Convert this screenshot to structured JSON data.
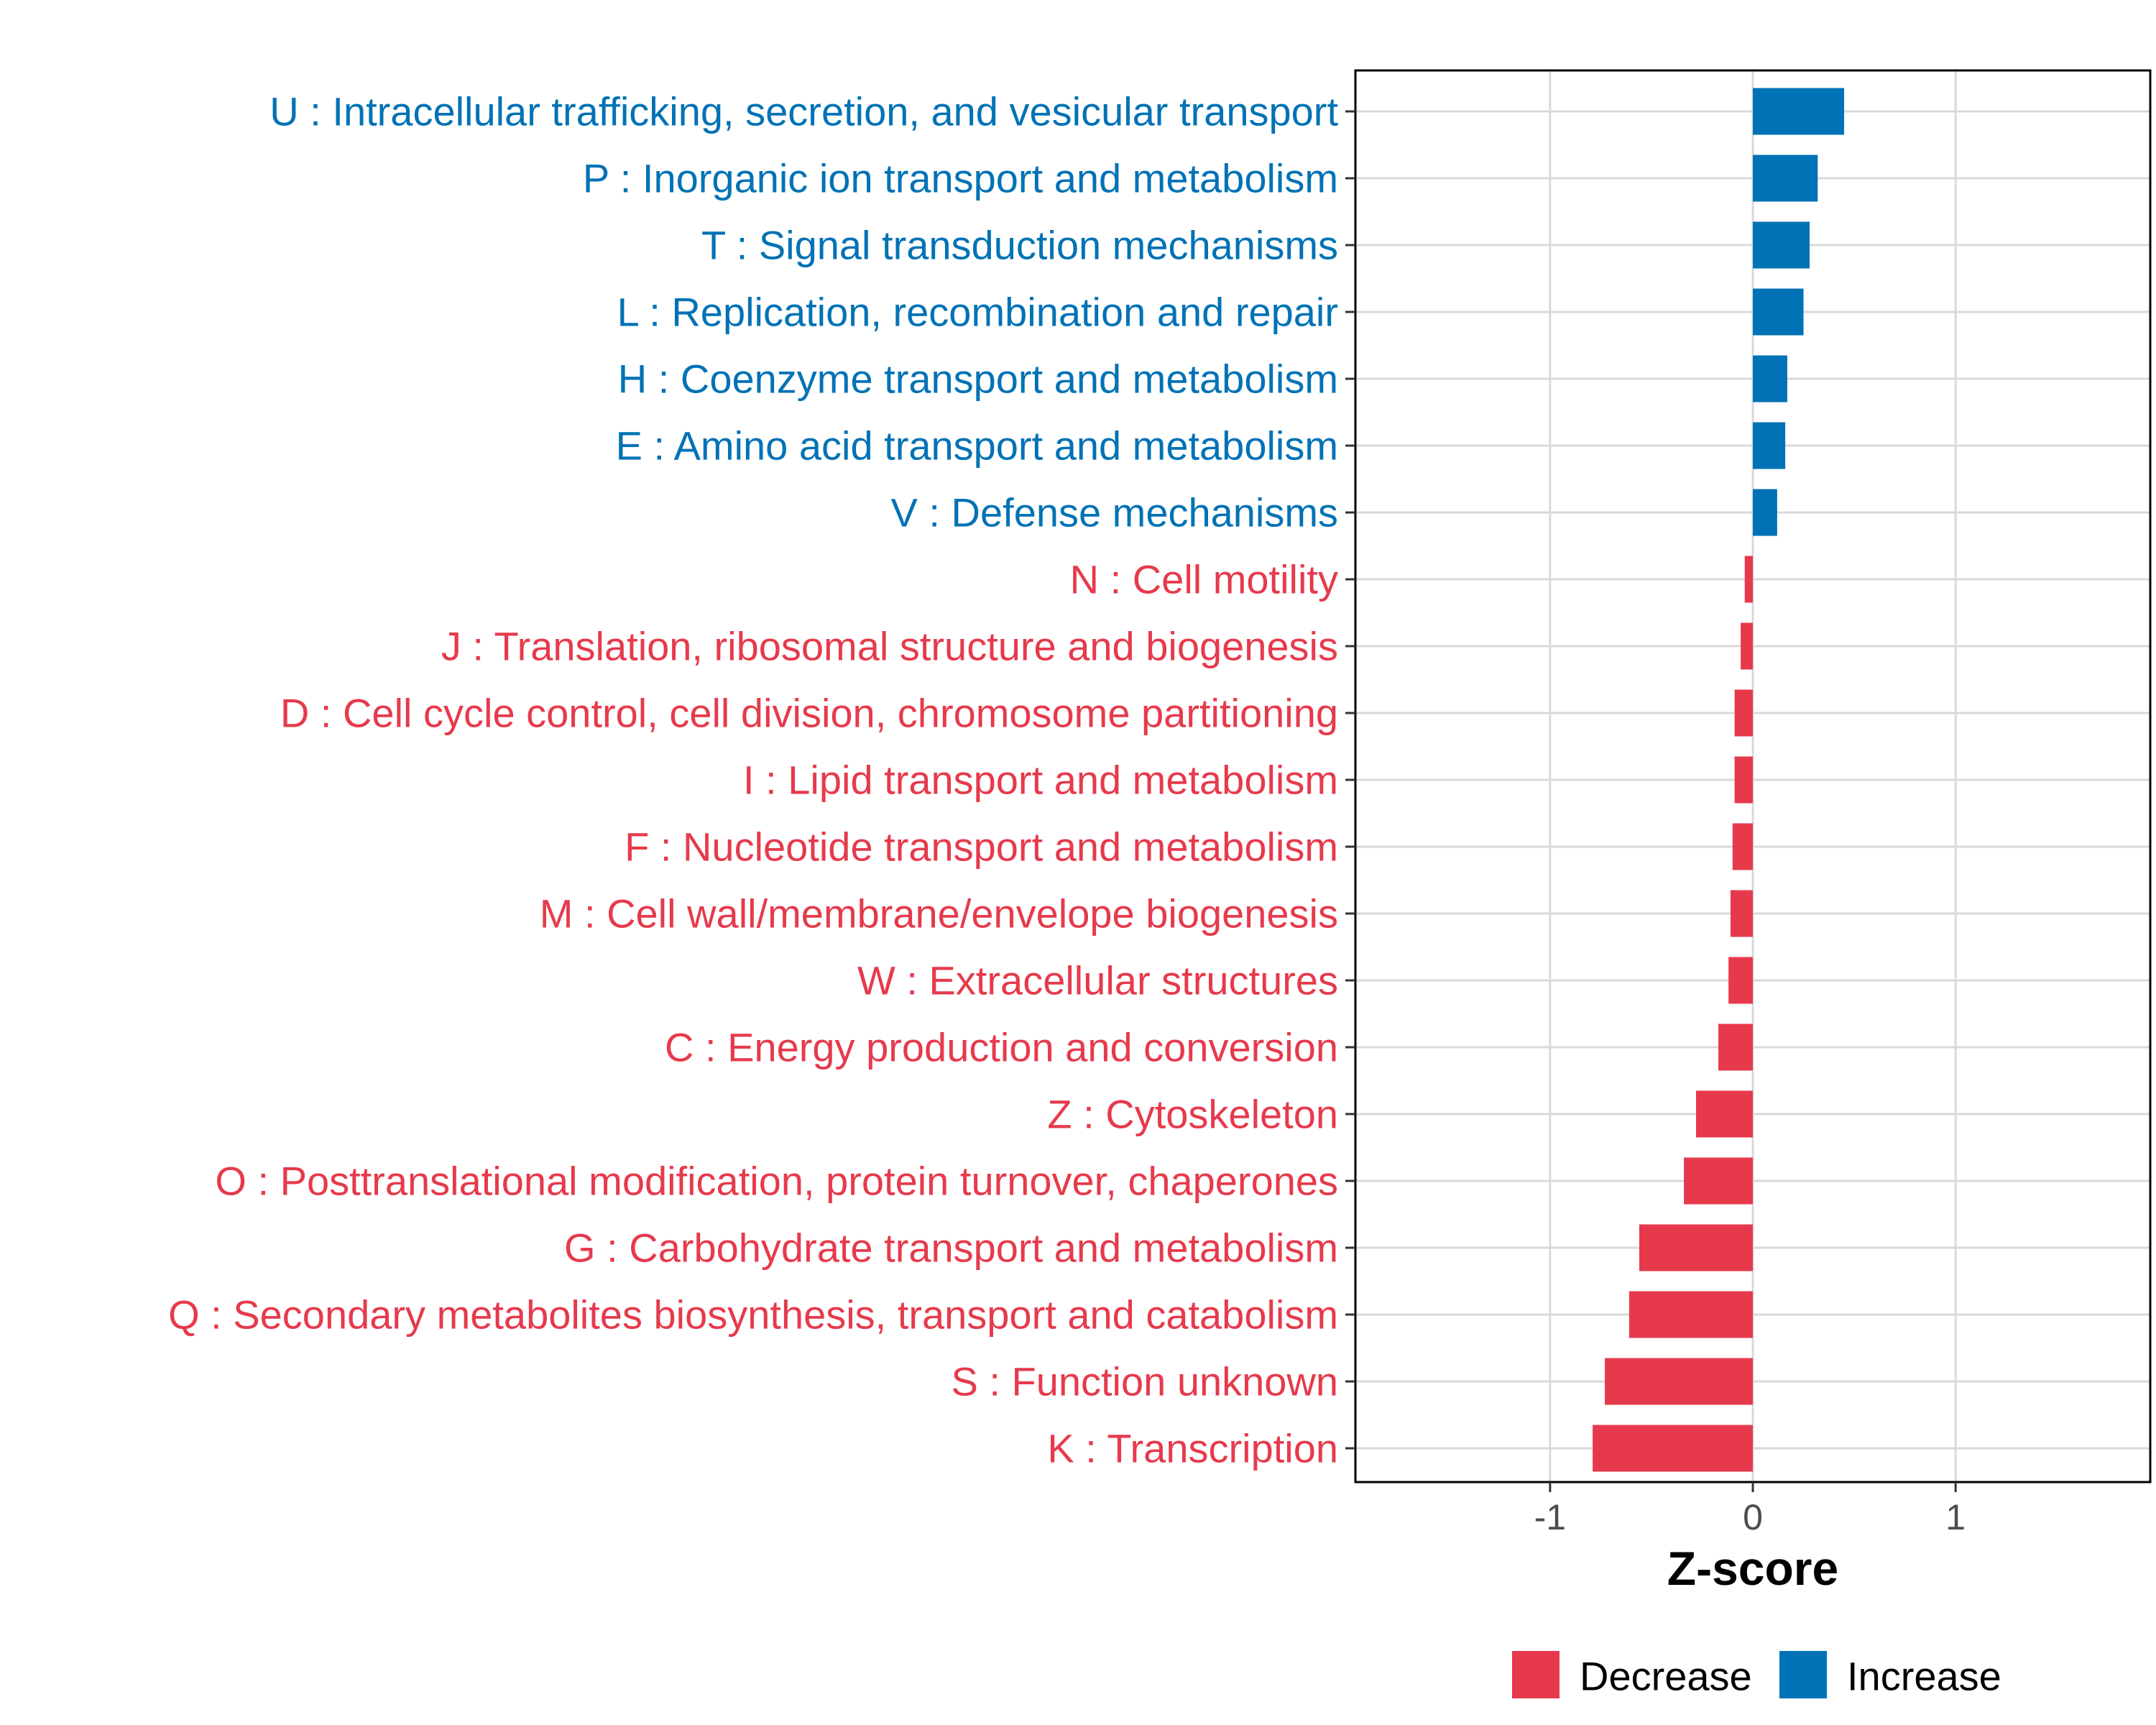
{
  "chart_data": {
    "type": "bar",
    "orientation": "horizontal",
    "title": "",
    "xlabel": "Z-score",
    "ylabel": "",
    "xlim": [
      -1.96,
      1.96
    ],
    "xticks": [
      {
        "value": -1,
        "label": "-1"
      },
      {
        "value": 0,
        "label": "0"
      },
      {
        "value": 1,
        "label": "1"
      }
    ],
    "grid": true,
    "legend_position": "bottom",
    "colors": {
      "Increase": "#0072B5",
      "Decrease": "#E63A4C"
    },
    "legend": [
      {
        "label": "Decrease",
        "color": "#E63A4C"
      },
      {
        "label": "Increase",
        "color": "#0072B5"
      }
    ],
    "categories": [
      {
        "label": "U : Intracellular trafficking, secretion, and vesicular transport",
        "value": 0.45,
        "group": "Increase"
      },
      {
        "label": "P : Inorganic ion transport and metabolism",
        "value": 0.32,
        "group": "Increase"
      },
      {
        "label": "T : Signal transduction mechanisms",
        "value": 0.28,
        "group": "Increase"
      },
      {
        "label": "L : Replication, recombination and repair",
        "value": 0.25,
        "group": "Increase"
      },
      {
        "label": "H : Coenzyme transport and metabolism",
        "value": 0.17,
        "group": "Increase"
      },
      {
        "label": "E : Amino acid transport and metabolism",
        "value": 0.16,
        "group": "Increase"
      },
      {
        "label": "V : Defense mechanisms",
        "value": 0.12,
        "group": "Increase"
      },
      {
        "label": "N : Cell motility",
        "value": -0.04,
        "group": "Decrease"
      },
      {
        "label": "J : Translation, ribosomal structure and biogenesis",
        "value": -0.06,
        "group": "Decrease"
      },
      {
        "label": "D : Cell cycle control, cell division, chromosome partitioning",
        "value": -0.09,
        "group": "Decrease"
      },
      {
        "label": "I : Lipid transport and metabolism",
        "value": -0.09,
        "group": "Decrease"
      },
      {
        "label": "F : Nucleotide transport and metabolism",
        "value": -0.1,
        "group": "Decrease"
      },
      {
        "label": "M : Cell wall/membrane/envelope biogenesis",
        "value": -0.11,
        "group": "Decrease"
      },
      {
        "label": "W : Extracellular structures",
        "value": -0.12,
        "group": "Decrease"
      },
      {
        "label": "C : Energy production and conversion",
        "value": -0.17,
        "group": "Decrease"
      },
      {
        "label": "Z : Cytoskeleton",
        "value": -0.28,
        "group": "Decrease"
      },
      {
        "label": "O : Posttranslational modification, protein turnover, chaperones",
        "value": -0.34,
        "group": "Decrease"
      },
      {
        "label": "G : Carbohydrate transport and metabolism",
        "value": -0.56,
        "group": "Decrease"
      },
      {
        "label": "Q : Secondary metabolites biosynthesis, transport and catabolism",
        "value": -0.61,
        "group": "Decrease"
      },
      {
        "label": "S : Function unknown",
        "value": -0.73,
        "group": "Decrease"
      },
      {
        "label": "K : Transcription",
        "value": -0.79,
        "group": "Decrease"
      }
    ]
  }
}
